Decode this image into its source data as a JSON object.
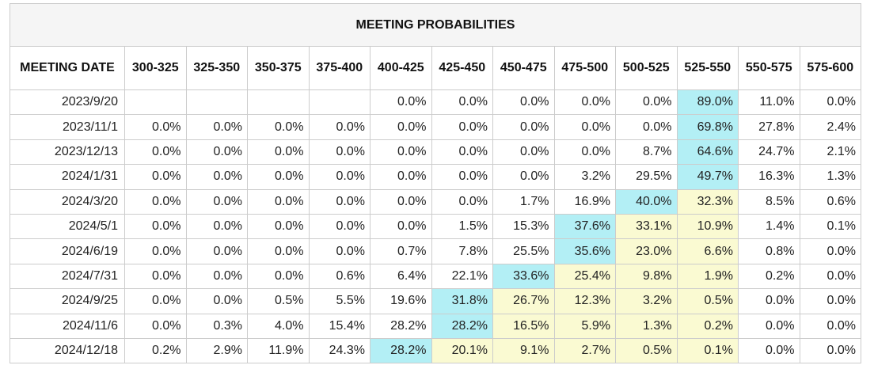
{
  "title": "MEETING PROBABILITIES",
  "header": {
    "date_label": "MEETING DATE",
    "ranges": [
      "300-325",
      "325-350",
      "350-375",
      "375-400",
      "400-425",
      "425-450",
      "450-475",
      "475-500",
      "500-525",
      "525-550",
      "550-575",
      "575-600"
    ]
  },
  "highlight_colors": {
    "max_probability": "#b3eff5",
    "other_probability": "#fafad2"
  },
  "rows": [
    {
      "date": "2023/9/20",
      "values": [
        "",
        "",
        "",
        "",
        "0.0%",
        "0.0%",
        "0.0%",
        "0.0%",
        "0.0%",
        "89.0%",
        "11.0%",
        "0.0%"
      ],
      "hl": [
        "",
        "",
        "",
        "",
        "",
        "",
        "",
        "",
        "",
        "cyan",
        "",
        ""
      ]
    },
    {
      "date": "2023/11/1",
      "values": [
        "0.0%",
        "0.0%",
        "0.0%",
        "0.0%",
        "0.0%",
        "0.0%",
        "0.0%",
        "0.0%",
        "0.0%",
        "69.8%",
        "27.8%",
        "2.4%"
      ],
      "hl": [
        "",
        "",
        "",
        "",
        "",
        "",
        "",
        "",
        "",
        "cyan",
        "",
        ""
      ]
    },
    {
      "date": "2023/12/13",
      "values": [
        "0.0%",
        "0.0%",
        "0.0%",
        "0.0%",
        "0.0%",
        "0.0%",
        "0.0%",
        "0.0%",
        "8.7%",
        "64.6%",
        "24.7%",
        "2.1%"
      ],
      "hl": [
        "",
        "",
        "",
        "",
        "",
        "",
        "",
        "",
        "",
        "cyan",
        "",
        ""
      ]
    },
    {
      "date": "2024/1/31",
      "values": [
        "0.0%",
        "0.0%",
        "0.0%",
        "0.0%",
        "0.0%",
        "0.0%",
        "0.0%",
        "3.2%",
        "29.5%",
        "49.7%",
        "16.3%",
        "1.3%"
      ],
      "hl": [
        "",
        "",
        "",
        "",
        "",
        "",
        "",
        "",
        "",
        "cyan",
        "",
        ""
      ]
    },
    {
      "date": "2024/3/20",
      "values": [
        "0.0%",
        "0.0%",
        "0.0%",
        "0.0%",
        "0.0%",
        "0.0%",
        "1.7%",
        "16.9%",
        "40.0%",
        "32.3%",
        "8.5%",
        "0.6%"
      ],
      "hl": [
        "",
        "",
        "",
        "",
        "",
        "",
        "",
        "",
        "cyan",
        "yellow",
        "",
        ""
      ]
    },
    {
      "date": "2024/5/1",
      "values": [
        "0.0%",
        "0.0%",
        "0.0%",
        "0.0%",
        "0.0%",
        "1.5%",
        "15.3%",
        "37.6%",
        "33.1%",
        "10.9%",
        "1.4%",
        "0.1%"
      ],
      "hl": [
        "",
        "",
        "",
        "",
        "",
        "",
        "",
        "cyan",
        "yellow",
        "yellow",
        "",
        ""
      ]
    },
    {
      "date": "2024/6/19",
      "values": [
        "0.0%",
        "0.0%",
        "0.0%",
        "0.0%",
        "0.7%",
        "7.8%",
        "25.5%",
        "35.6%",
        "23.0%",
        "6.6%",
        "0.8%",
        "0.0%"
      ],
      "hl": [
        "",
        "",
        "",
        "",
        "",
        "",
        "",
        "cyan",
        "yellow",
        "yellow",
        "",
        ""
      ]
    },
    {
      "date": "2024/7/31",
      "values": [
        "0.0%",
        "0.0%",
        "0.0%",
        "0.6%",
        "6.4%",
        "22.1%",
        "33.6%",
        "25.4%",
        "9.8%",
        "1.9%",
        "0.2%",
        "0.0%"
      ],
      "hl": [
        "",
        "",
        "",
        "",
        "",
        "",
        "cyan",
        "yellow",
        "yellow",
        "yellow",
        "",
        ""
      ]
    },
    {
      "date": "2024/9/25",
      "values": [
        "0.0%",
        "0.0%",
        "0.5%",
        "5.5%",
        "19.6%",
        "31.8%",
        "26.7%",
        "12.3%",
        "3.2%",
        "0.5%",
        "0.0%",
        "0.0%"
      ],
      "hl": [
        "",
        "",
        "",
        "",
        "",
        "cyan",
        "yellow",
        "yellow",
        "yellow",
        "yellow",
        "",
        ""
      ]
    },
    {
      "date": "2024/11/6",
      "values": [
        "0.0%",
        "0.3%",
        "4.0%",
        "15.4%",
        "28.2%",
        "28.2%",
        "16.5%",
        "5.9%",
        "1.3%",
        "0.2%",
        "0.0%",
        "0.0%"
      ],
      "hl": [
        "",
        "",
        "",
        "",
        "",
        "cyan",
        "yellow",
        "yellow",
        "yellow",
        "yellow",
        "",
        ""
      ]
    },
    {
      "date": "2024/12/18",
      "values": [
        "0.2%",
        "2.9%",
        "11.9%",
        "24.3%",
        "28.2%",
        "20.1%",
        "9.1%",
        "2.7%",
        "0.5%",
        "0.1%",
        "0.0%",
        "0.0%"
      ],
      "hl": [
        "",
        "",
        "",
        "",
        "cyan",
        "yellow",
        "yellow",
        "yellow",
        "yellow",
        "yellow",
        "",
        ""
      ]
    }
  ]
}
